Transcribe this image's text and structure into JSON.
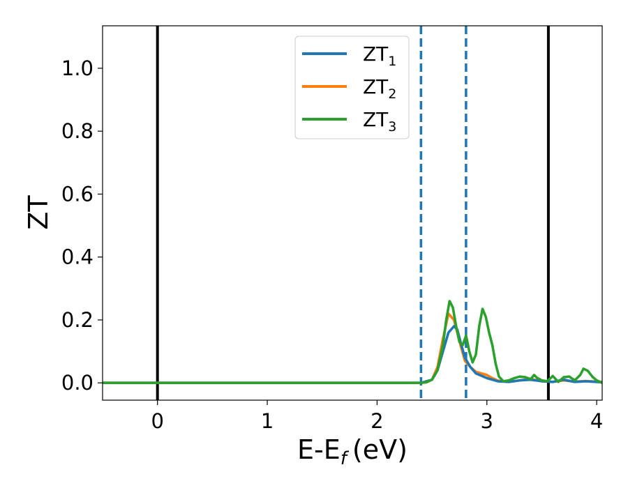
{
  "chart_data": {
    "type": "line",
    "xlabel": "E-E",
    "xlabel_sub": "f",
    "xlabel_unit": "(eV)",
    "ylabel": "ZT",
    "xlim": [
      -0.5,
      4.05
    ],
    "ylim": [
      -0.055,
      1.135
    ],
    "xticks": [
      0,
      1,
      2,
      3,
      4
    ],
    "xtick_labels": [
      "0",
      "1",
      "2",
      "3",
      "4"
    ],
    "yticks": [
      0.0,
      0.2,
      0.4,
      0.6,
      0.8,
      1.0
    ],
    "ytick_labels": [
      "0.0",
      "0.2",
      "0.4",
      "0.6",
      "0.8",
      "1.0"
    ],
    "grid": false,
    "legend_position": "top-center",
    "vlines": [
      {
        "x": 0.0,
        "style": "solid",
        "color": "#000000"
      },
      {
        "x": 3.56,
        "style": "solid",
        "color": "#000000"
      },
      {
        "x": 2.4,
        "style": "dashed",
        "color": "#1f77b4"
      },
      {
        "x": 2.81,
        "style": "dashed",
        "color": "#1f77b4"
      }
    ],
    "series": [
      {
        "name": "ZT",
        "name_sub": "1",
        "color": "#1f77b4",
        "x": [
          -0.5,
          2.4,
          2.5,
          2.55,
          2.6,
          2.65,
          2.7,
          2.73,
          2.76,
          2.8,
          2.85,
          2.9,
          3.0,
          3.1,
          3.2,
          3.3,
          3.4,
          3.5,
          3.6,
          3.7,
          3.8,
          3.9,
          4.05
        ],
        "y": [
          0.0,
          0.0,
          0.01,
          0.04,
          0.1,
          0.16,
          0.18,
          0.17,
          0.13,
          0.08,
          0.05,
          0.03,
          0.015,
          0.005,
          0.003,
          0.008,
          0.01,
          0.005,
          0.003,
          0.01,
          0.003,
          0.005,
          0.002
        ]
      },
      {
        "name": "ZT",
        "name_sub": "2",
        "color": "#ff7f0e",
        "x": [
          -0.5,
          2.4,
          2.5,
          2.55,
          2.6,
          2.65,
          2.7,
          2.73,
          2.76,
          2.8,
          2.85,
          2.9,
          2.95,
          3.0,
          3.05,
          3.1,
          3.2,
          3.3,
          3.4,
          3.5,
          3.6,
          3.7,
          3.8,
          3.9,
          4.05
        ],
        "y": [
          0.0,
          0.0,
          0.01,
          0.05,
          0.14,
          0.22,
          0.2,
          0.16,
          0.12,
          0.07,
          0.05,
          0.035,
          0.03,
          0.025,
          0.015,
          0.007,
          0.003,
          0.008,
          0.012,
          0.006,
          0.003,
          0.008,
          0.004,
          0.006,
          0.003
        ]
      },
      {
        "name": "ZT",
        "name_sub": "3",
        "color": "#2ca02c",
        "x": [
          -0.5,
          2.4,
          2.45,
          2.5,
          2.55,
          2.6,
          2.63,
          2.66,
          2.69,
          2.72,
          2.75,
          2.78,
          2.81,
          2.84,
          2.87,
          2.9,
          2.93,
          2.96,
          2.99,
          3.02,
          3.05,
          3.08,
          3.11,
          3.15,
          3.2,
          3.25,
          3.3,
          3.35,
          3.4,
          3.43,
          3.46,
          3.5,
          3.55,
          3.6,
          3.65,
          3.7,
          3.75,
          3.8,
          3.85,
          3.88,
          3.92,
          3.96,
          4.0,
          4.05
        ],
        "y": [
          0.0,
          0.0,
          0.002,
          0.01,
          0.04,
          0.12,
          0.2,
          0.26,
          0.24,
          0.18,
          0.13,
          0.12,
          0.15,
          0.1,
          0.065,
          0.09,
          0.18,
          0.235,
          0.21,
          0.16,
          0.12,
          0.06,
          0.02,
          0.005,
          0.008,
          0.015,
          0.02,
          0.018,
          0.012,
          0.025,
          0.015,
          0.008,
          0.005,
          0.022,
          0.003,
          0.018,
          0.02,
          0.008,
          0.025,
          0.045,
          0.038,
          0.02,
          0.008,
          0.0
        ]
      }
    ]
  }
}
